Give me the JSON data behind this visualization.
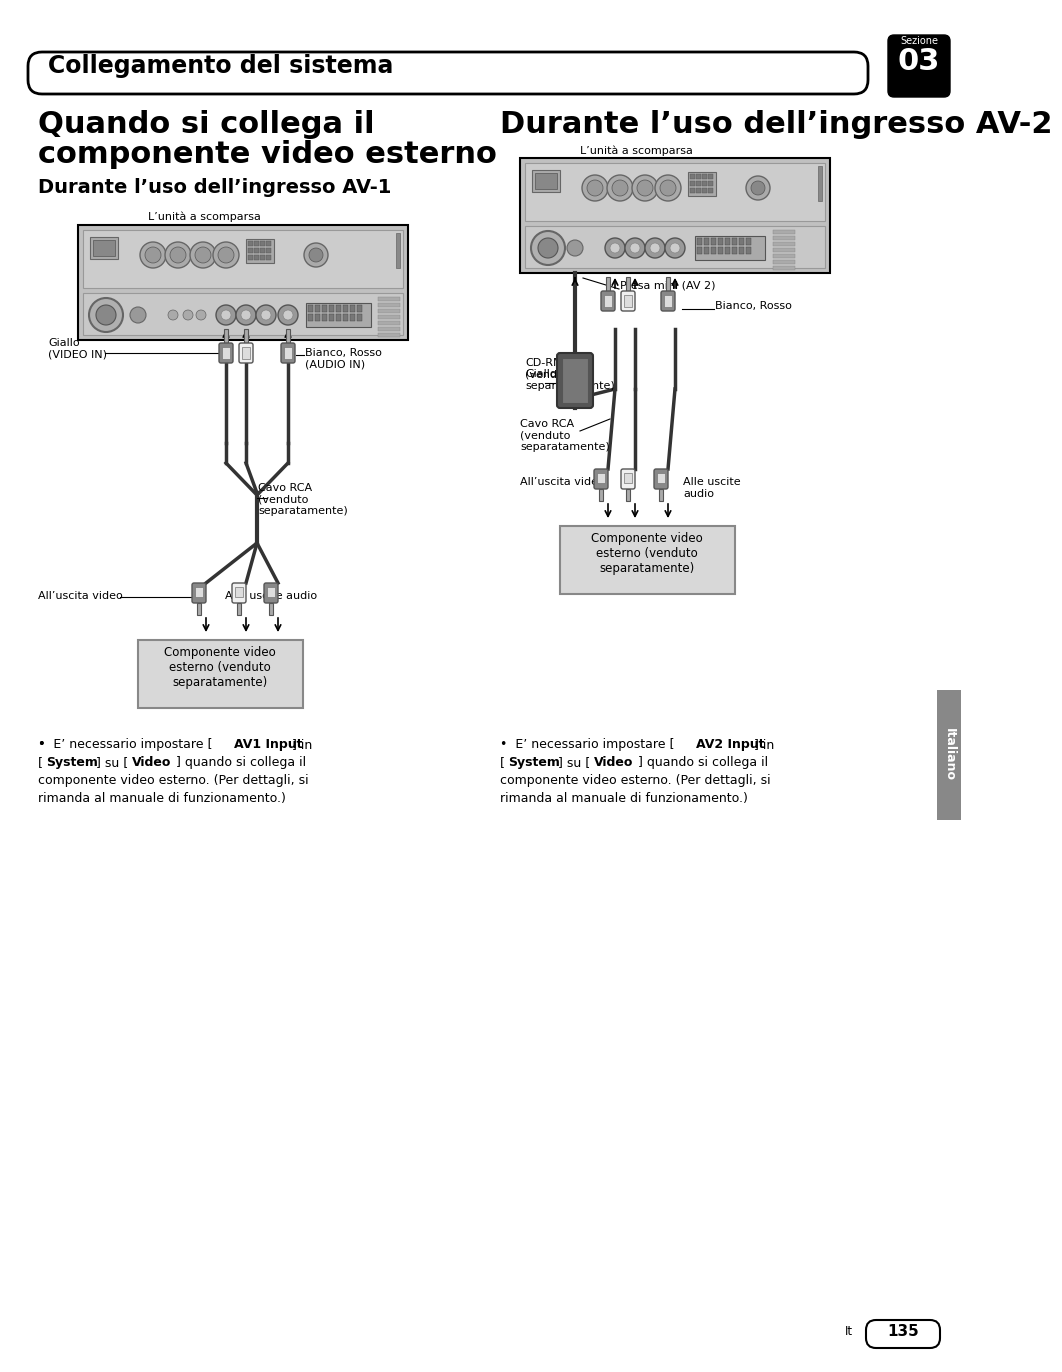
{
  "page_bg": "#ffffff",
  "header_bar_text": "Collegamento del sistema",
  "header_section_label": "Sezione",
  "header_section_num": "03",
  "main_title_line1": "Quando si collega il",
  "main_title_line2": "componente video esterno",
  "subtitle_av1": "Durante l’uso dell’ingresso AV-1",
  "subtitle_av2": "Durante l’uso dell’ingresso AV-2",
  "label_lunita": "L’unità a scomparsa",
  "label_giallo": "Giallo\n(VIDEO IN)",
  "label_bianco_rosso_av1": "Bianco, Rosso\n(AUDIO IN)",
  "label_cavo_rca": "Cavo RCA\n(venduto\nseparatamente)",
  "label_uscita_video_av1": "All’uscita video",
  "label_uscite_audio_av1": "Alle uscite audio",
  "label_componente_av1": "Componente video\nesterno (venduto\nseparatamente)",
  "label_presa_mini": "Presa mini (AV 2)",
  "label_bianco_rosso_av2": "Bianco, Rosso",
  "label_cd_rm10": "CD-RM10\n(venduto\nseparatamente)",
  "label_giallo_av2": "Giallo",
  "label_cavo_rca_av2": "Cavo RCA\n(venduto\nseparatamente)",
  "label_uscita_video_av2": "All’uscita video",
  "label_uscite_audio_av2": "Alle uscite\naudio",
  "label_componente_av2": "Componente video\nesterno (venduto\nseparatamente)",
  "sidebar_text": "Italiano",
  "page_label": "It",
  "page_num": "135",
  "device_color": "#c0c0c0",
  "device_face": "#b0b0b0",
  "connector_color": "#888888",
  "box_bg": "#d8d8d8"
}
